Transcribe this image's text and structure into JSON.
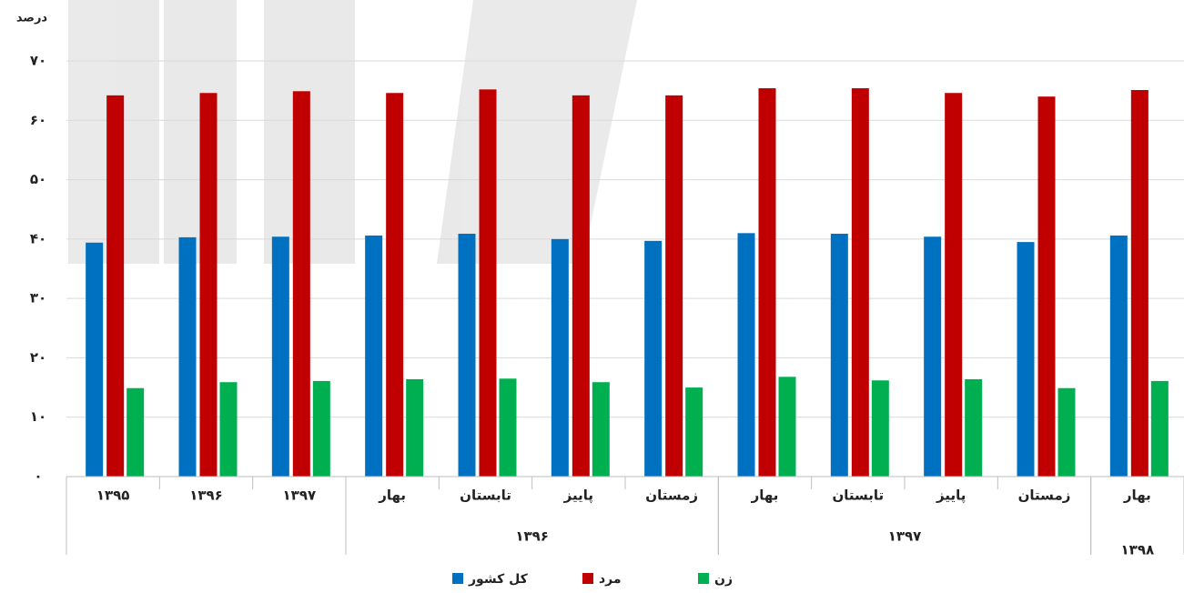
{
  "chart_data": {
    "type": "bar",
    "y_label": "درصد",
    "categories": [
      "۱۳۹۵",
      "۱۳۹۶",
      "۱۳۹۷",
      "بهار",
      "تابستان",
      "پاییز",
      "زمستان",
      "بهار",
      "تابستان",
      "پاییز",
      "زمستان",
      "بهار"
    ],
    "category_groups": [
      null,
      null,
      null,
      "۱۳۹۶",
      "۱۳۹۶",
      "۱۳۹۶",
      "۱۳۹۶",
      "۱۳۹۷",
      "۱۳۹۷",
      "۱۳۹۷",
      "۱۳۹۷",
      "۱۳۹۸"
    ],
    "series": [
      {
        "name": "کل کشور",
        "color": "#0070c0",
        "values": [
          39.4,
          40.3,
          40.4,
          40.6,
          40.9,
          40.0,
          39.7,
          41.0,
          40.9,
          40.4,
          39.5,
          40.6
        ]
      },
      {
        "name": "مرد",
        "color": "#c00000",
        "values": [
          64.2,
          64.6,
          64.9,
          64.6,
          65.2,
          64.2,
          64.2,
          65.4,
          65.4,
          64.6,
          64.0,
          65.1
        ]
      },
      {
        "name": "زن",
        "color": "#00b050",
        "values": [
          14.9,
          15.9,
          16.1,
          16.4,
          16.5,
          15.9,
          15.0,
          16.8,
          16.2,
          16.4,
          14.9,
          16.1
        ]
      }
    ],
    "ylim": [
      0,
      70
    ],
    "yticks": [
      {
        "value": 0,
        "label": "۰"
      },
      {
        "value": 10,
        "label": "۱۰"
      },
      {
        "value": 20,
        "label": "۲۰"
      },
      {
        "value": 30,
        "label": "۳۰"
      },
      {
        "value": 40,
        "label": "۴۰"
      },
      {
        "value": 50,
        "label": "۵۰"
      },
      {
        "value": 60,
        "label": "۶۰"
      },
      {
        "value": 70,
        "label": "۷۰"
      }
    ],
    "grid": true
  }
}
